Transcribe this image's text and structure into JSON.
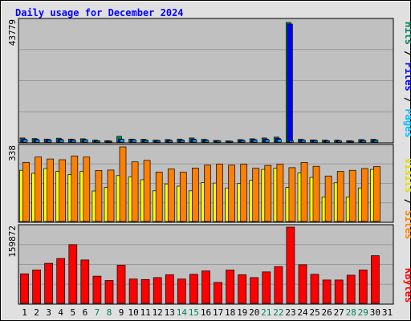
{
  "chart_data": {
    "type": "bar",
    "title": "Daily usage for December 2024",
    "categories": [
      "1",
      "2",
      "3",
      "4",
      "5",
      "6",
      "7",
      "8",
      "9",
      "10",
      "11",
      "12",
      "13",
      "14",
      "15",
      "16",
      "17",
      "18",
      "19",
      "20",
      "21",
      "22",
      "23",
      "24",
      "25",
      "26",
      "27",
      "28",
      "29",
      "30",
      "31"
    ],
    "weekend_days": [
      "7",
      "8",
      "14",
      "15",
      "21",
      "22",
      "28",
      "29"
    ],
    "panels": {
      "top": {
        "ymax_label": "43779",
        "ylim": [
          0,
          43779
        ],
        "side_label": {
          "pages": "Pages",
          "files": "Files",
          "hits": "Hits",
          "sep": " / "
        },
        "series": [
          {
            "name": "Hits",
            "values": [
              1500,
              1300,
              1100,
              1400,
              1100,
              1200,
              700,
              500,
              2100,
              1100,
              1000,
              700,
              900,
              1100,
              1500,
              1000,
              600,
              400,
              900,
              1200,
              1500,
              1800,
              43779,
              1000,
              800,
              700,
              700,
              500,
              900,
              1000,
              0
            ]
          },
          {
            "name": "Files",
            "values": [
              1100,
              1000,
              900,
              1000,
              900,
              900,
              500,
              400,
              1100,
              900,
              800,
              600,
              700,
              800,
              1100,
              800,
              500,
              300,
              700,
              900,
              1100,
              1300,
              43200,
              800,
              700,
              500,
              500,
              400,
              700,
              800,
              0
            ]
          },
          {
            "name": "Pages",
            "values": [
              800,
              700,
              600,
              700,
              600,
              700,
              400,
              300,
              900,
              700,
              600,
              400,
              500,
              600,
              800,
              600,
              400,
              250,
              500,
              700,
              800,
              900,
              500,
              600,
              500,
              400,
              400,
              300,
              500,
              600,
              0
            ]
          }
        ]
      },
      "middle": {
        "ymax_label": "338",
        "ylim": [
          0,
          338
        ],
        "side_label": {
          "sites": "Sites",
          "visits": "Visits",
          "sep": " / "
        },
        "series": [
          {
            "name": "Visits",
            "values": [
              232,
              218,
              240,
              227,
              213,
              227,
              138,
              154,
              208,
              202,
              189,
              139,
              170,
              160,
              139,
              176,
              174,
              152,
              172,
              186,
              236,
              241,
              154,
              220,
              200,
              111,
              175,
              110,
              152,
              236,
              0
            ]
          },
          {
            "name": "Sites",
            "values": [
              268,
              292,
              283,
              280,
              297,
              292,
              231,
              233,
              338,
              270,
              277,
              224,
              238,
              223,
              242,
              255,
              260,
              255,
              259,
              241,
              254,
              259,
              244,
              267,
              250,
              206,
              227,
              232,
              240,
              249,
              0
            ]
          }
        ]
      },
      "bottom": {
        "ymax_label": "159872",
        "ylim": [
          0,
          159872
        ],
        "side_label": {
          "kbytes": "KBytes"
        },
        "series": [
          {
            "name": "KBytes",
            "values": [
              62000,
              70000,
              84000,
              94000,
              123000,
              91000,
              57000,
              48000,
              80000,
              51000,
              50000,
              54000,
              60000,
              51000,
              61000,
              68000,
              44000,
              70000,
              60000,
              54000,
              66000,
              77000,
              159872,
              81000,
              61000,
              49000,
              49000,
              59000,
              70000,
              100000,
              0
            ]
          }
        ]
      }
    },
    "colors": {
      "hits": "#00805c",
      "files": "#0000ff",
      "pages": "#00c0ff",
      "visits": "#ffff00",
      "sites": "#ff8000",
      "kbytes": "#ff0000",
      "title": "#0000ff",
      "day_normal": "#000000",
      "day_weekend": "#00805c",
      "plot_bg": "#c0c0c0",
      "frame_bg": "#e0e0e0"
    }
  }
}
